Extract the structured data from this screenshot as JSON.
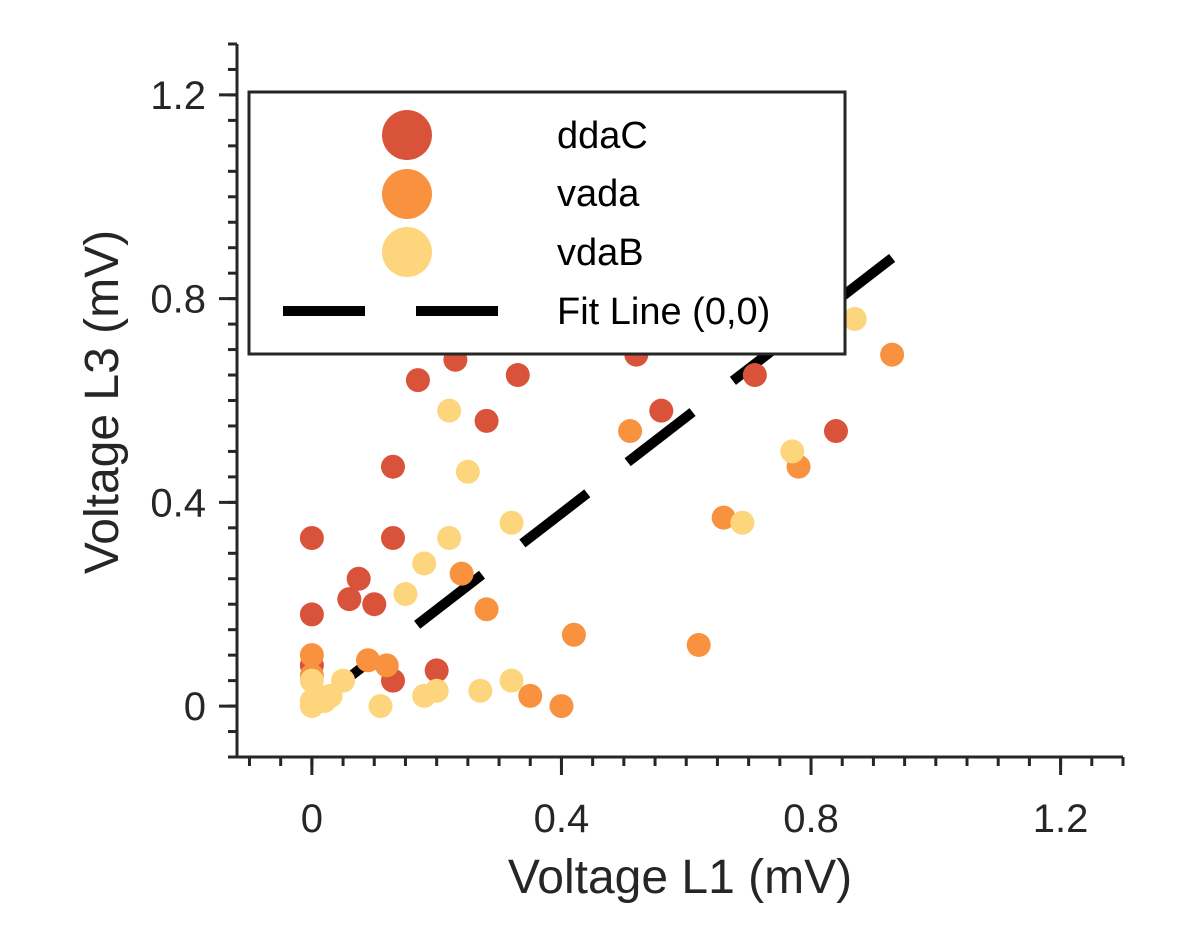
{
  "chart_data": {
    "type": "scatter",
    "xlabel": "Voltage L1 (mV)",
    "ylabel": "Voltage L3 (mV)",
    "xlim": [
      -0.12,
      1.3
    ],
    "ylim": [
      -0.1,
      1.3
    ],
    "xticks": [
      0,
      0.4,
      0.8,
      1.2
    ],
    "xtick_labels": [
      "0",
      "0.4",
      "0.8",
      "1.2"
    ],
    "yticks": [
      0,
      0.4,
      0.8,
      1.2
    ],
    "ytick_labels": [
      "0",
      "0.4",
      "0.8",
      "1.2"
    ],
    "minor_tick_step": 0.05,
    "grid": false,
    "legend_position": "upper-left",
    "series": [
      {
        "name": "ddaC",
        "color": "#d9533a",
        "points": [
          [
            0,
            0.33
          ],
          [
            0,
            0.18
          ],
          [
            0,
            0.08
          ],
          [
            0.06,
            0.21
          ],
          [
            0.075,
            0.25
          ],
          [
            0.1,
            0.2
          ],
          [
            0.13,
            0.47
          ],
          [
            0.13,
            0.33
          ],
          [
            0.13,
            0.05
          ],
          [
            0.2,
            0.07
          ],
          [
            0.17,
            0.64
          ],
          [
            0.23,
            0.68
          ],
          [
            0.28,
            0.56
          ],
          [
            0.33,
            0.65
          ],
          [
            0.52,
            0.69
          ],
          [
            0.56,
            0.58
          ],
          [
            0.71,
            0.65
          ],
          [
            0.84,
            0.54
          ]
        ]
      },
      {
        "name": "vada",
        "color": "#f9923e",
        "points": [
          [
            0,
            0.1
          ],
          [
            0,
            0.06
          ],
          [
            0.09,
            0.09
          ],
          [
            0.12,
            0.08
          ],
          [
            0.24,
            0.26
          ],
          [
            0.28,
            0.19
          ],
          [
            0.35,
            0.02
          ],
          [
            0.4,
            0
          ],
          [
            0.42,
            0.14
          ],
          [
            0.51,
            0.54
          ],
          [
            0.62,
            0.12
          ],
          [
            0.66,
            0.37
          ],
          [
            0.78,
            0.47
          ],
          [
            0.93,
            0.69
          ]
        ]
      },
      {
        "name": "vdaB",
        "color": "#fdd57c",
        "points": [
          [
            0,
            0
          ],
          [
            0,
            0.01
          ],
          [
            0.01,
            0.02
          ],
          [
            0.02,
            0.01
          ],
          [
            0,
            0.05
          ],
          [
            0.03,
            0.02
          ],
          [
            0.05,
            0.05
          ],
          [
            0.11,
            0
          ],
          [
            0.15,
            0.22
          ],
          [
            0.18,
            0.28
          ],
          [
            0.18,
            0.02
          ],
          [
            0.2,
            0.03
          ],
          [
            0.22,
            0.58
          ],
          [
            0.22,
            0.33
          ],
          [
            0.25,
            0.46
          ],
          [
            0.27,
            0.03
          ],
          [
            0.32,
            0.36
          ],
          [
            0.32,
            0.05
          ],
          [
            0.69,
            0.36
          ],
          [
            0.77,
            0.5
          ],
          [
            0.87,
            0.76
          ]
        ]
      }
    ],
    "fit_line": {
      "name": "Fit Line (0,0)",
      "color": "#000000",
      "x": [
        0,
        0.93
      ],
      "y": [
        0,
        0.88
      ]
    }
  }
}
